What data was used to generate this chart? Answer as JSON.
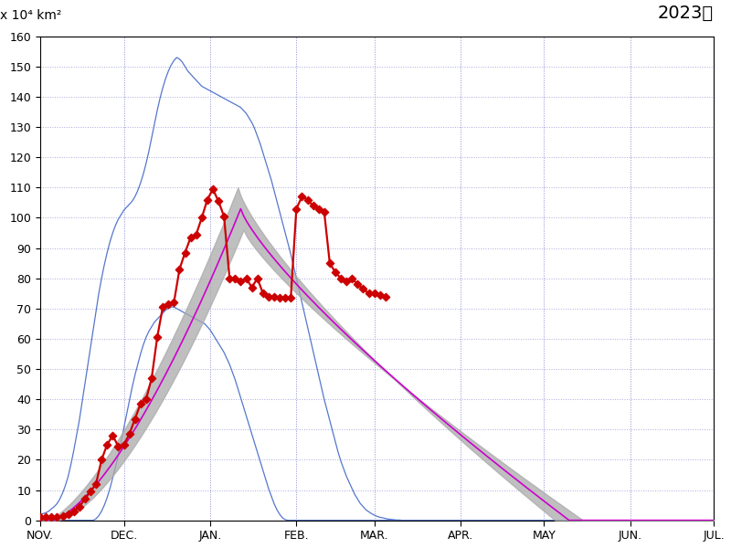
{
  "title": "2023年",
  "ylabel_text": "x 10⁴ km²",
  "ylim": [
    0,
    160
  ],
  "month_labels": [
    "NOV.",
    "DEC.",
    "JAN.",
    "FEB.",
    "MAR.",
    "APR.",
    "MAY",
    "JUN.",
    "JUL."
  ],
  "month_starts": [
    0,
    30,
    61,
    92,
    120,
    151,
    181,
    212,
    242
  ],
  "total_days": 243,
  "mean_color": "#cc00cc",
  "blue_color": "#5577cc",
  "shade_color": "#aaaaaa",
  "red_color": "#cc0000",
  "grid_color": "#aaaadd"
}
